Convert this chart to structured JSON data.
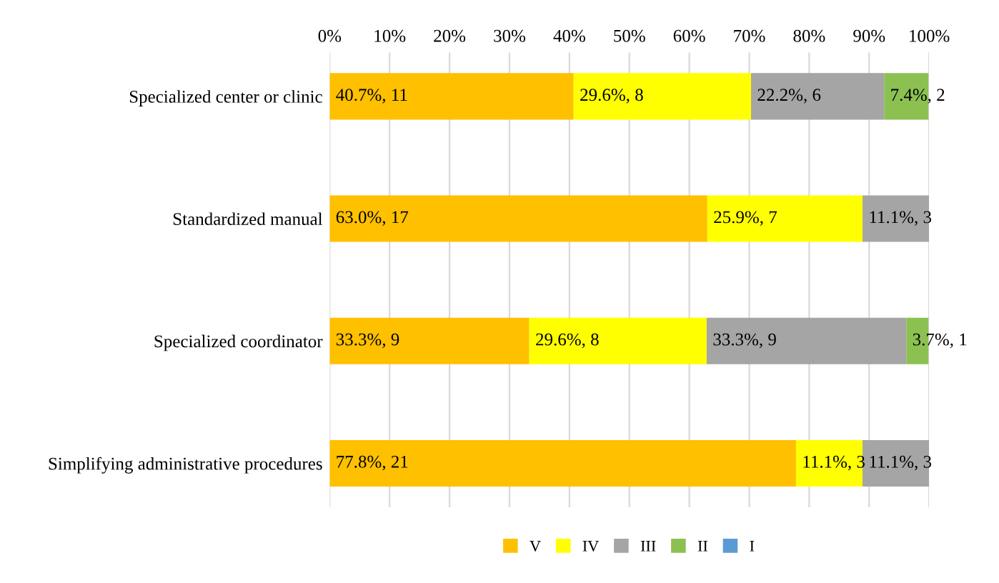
{
  "chart_data": {
    "type": "bar",
    "orientation": "horizontal",
    "stacked": true,
    "categories": [
      "Specialized center or clinic",
      "Standardized manual",
      "Specialized coordinator",
      "Simplifying administrative procedures"
    ],
    "series": [
      {
        "name": "V",
        "color": "#ffc000",
        "values": [
          40.7,
          63.0,
          33.3,
          77.8
        ],
        "value_labels": [
          "40.7%, 11",
          "63.0%, 17",
          "33.3%, 9",
          "77.8%, 21"
        ]
      },
      {
        "name": "IV",
        "color": "#ffff00",
        "values": [
          29.6,
          25.9,
          29.6,
          11.1
        ],
        "value_labels": [
          "29.6%, 8",
          "25.9%, 7",
          "29.6%, 8",
          "11.1%, 3"
        ]
      },
      {
        "name": "III",
        "color": "#a5a5a5",
        "values": [
          22.2,
          11.1,
          33.3,
          11.1
        ],
        "value_labels": [
          "22.2%, 6",
          "11.1%, 3",
          "33.3%, 9",
          "11.1%, 3"
        ]
      },
      {
        "name": "II",
        "color": "#8cc152",
        "values": [
          7.4,
          0,
          3.7,
          0
        ],
        "value_labels": [
          "7.4%, 2",
          null,
          "3.7%, 1",
          null
        ]
      },
      {
        "name": "I",
        "color": "#5b9bd5",
        "values": [
          0,
          0,
          0,
          0
        ],
        "value_labels": [
          null,
          null,
          null,
          null
        ]
      }
    ],
    "xlim": [
      0,
      100
    ],
    "xticks": [
      {
        "value": 0,
        "label": "0%"
      },
      {
        "value": 10,
        "label": "10%"
      },
      {
        "value": 20,
        "label": "20%"
      },
      {
        "value": 30,
        "label": "30%"
      },
      {
        "value": 40,
        "label": "40%"
      },
      {
        "value": 50,
        "label": "50%"
      },
      {
        "value": 60,
        "label": "60%"
      },
      {
        "value": 70,
        "label": "70%"
      },
      {
        "value": 80,
        "label": "80%"
      },
      {
        "value": 90,
        "label": "90%"
      },
      {
        "value": 100,
        "label": "100%"
      }
    ],
    "grid": "x",
    "legend": "bottom"
  }
}
